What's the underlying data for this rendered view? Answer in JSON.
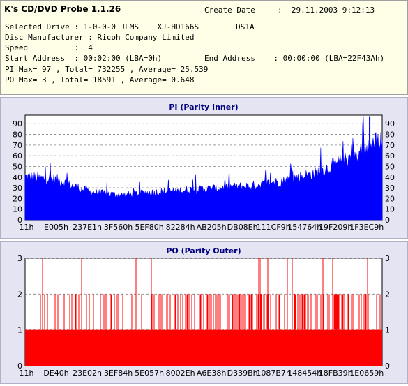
{
  "app_title": "K's CD/DVD Probe 1.1.26",
  "info": {
    "create_date_label": "Create Date",
    "create_date_value": ":  29.11.2003 9:12:13",
    "drive_line": "Selected Drive : 1-0-0-0 JLMS    XJ-HD166S        DS1A",
    "manufacturer_line": "Disc Manufacturer : Ricoh Company Limited",
    "speed_line": "Speed          :  4",
    "start_line": "Start Address  : 00:02:00 (LBA=0h)",
    "end_line": "End Address    : 00:00:00 (LBA=22F43Ah)",
    "pi_line": "PI Max= 97 , Total= 732255 , Average= 25.539",
    "po_line": "PO Max= 3 , Total= 18591 , Average= 0.648"
  },
  "colors": {
    "pi_fill": "#0000ff",
    "po_fill": "#ff0000",
    "plot_bg": "#ffffff",
    "panel_bg": "#e4e4f2",
    "title_color": "#000080"
  },
  "chart_data": [
    {
      "type": "area",
      "title": "PI (Parity Inner)",
      "ylim": [
        0,
        100
      ],
      "yticks": [
        "0",
        "10",
        "20",
        "30",
        "40",
        "50",
        "60",
        "70",
        "80",
        "90"
      ],
      "xticks": [
        "11h",
        "E005h",
        "237E1h",
        "3F560h",
        "5EF80h",
        "82284h",
        "AB205h",
        "DB08Eh",
        "111CF9h",
        "154764h",
        "19F209h",
        "1F3EC9h"
      ],
      "grid": true,
      "x": [
        "11h",
        "E005h",
        "237E1h",
        "3F560h",
        "5EF80h",
        "82284h",
        "AB205h",
        "DB08Eh",
        "111CF9h",
        "154764h",
        "19F209h",
        "1F3EC9h"
      ],
      "y": [
        42,
        39,
        27,
        24,
        27,
        29,
        31,
        33,
        38,
        46,
        60,
        79
      ],
      "max": 97
    },
    {
      "type": "bar",
      "title": "PO (Parity Outer)",
      "ylim": [
        0,
        3
      ],
      "yticks": [
        "0",
        "1",
        "2",
        "3"
      ],
      "xticks": [
        "11h",
        "DE40h",
        "23E02h",
        "3EF84h",
        "5E057h",
        "8002Eh",
        "A6E38h",
        "D339Bh",
        "1087B7h",
        "148454h",
        "18FB39h",
        "1E0659h"
      ],
      "grid": true,
      "baseline": 1,
      "max": 3
    }
  ]
}
